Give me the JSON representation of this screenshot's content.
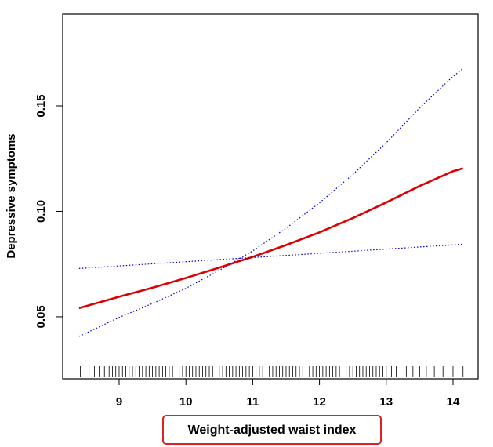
{
  "chart_data": {
    "type": "line",
    "xlabel": "Weight-adjusted waist index",
    "ylabel": "Depressive symptoms",
    "x": [
      8.4,
      9,
      9.5,
      10,
      10.5,
      11,
      11.5,
      12,
      12.5,
      13,
      13.5,
      14,
      14.15
    ],
    "series": [
      {
        "color": "#dd0000",
        "style": "solid",
        "values": [
          0.0541,
          0.0595,
          0.0638,
          0.0684,
          0.0733,
          0.0784,
          0.084,
          0.09,
          0.0968,
          0.1042,
          0.112,
          0.119,
          0.1204
        ]
      },
      {
        "color": "#0000cc",
        "style": "dotted",
        "values": [
          0.0407,
          0.0497,
          0.0563,
          0.0635,
          0.072,
          0.0812,
          0.092,
          0.104,
          0.1175,
          0.1325,
          0.149,
          0.164,
          0.1677
        ]
      },
      {
        "color": "#0000cc",
        "style": "dotted",
        "values": [
          0.0729,
          0.0741,
          0.0751,
          0.0761,
          0.0771,
          0.0781,
          0.0791,
          0.0801,
          0.0811,
          0.0821,
          0.0831,
          0.0841,
          0.0844
        ]
      }
    ],
    "rug": [
      8.42,
      8.55,
      8.63,
      8.7,
      8.78,
      8.85,
      8.9,
      8.95,
      9.0,
      9.05,
      9.1,
      9.15,
      9.2,
      9.25,
      9.3,
      9.35,
      9.4,
      9.45,
      9.5,
      9.55,
      9.6,
      9.65,
      9.7,
      9.75,
      9.8,
      9.85,
      9.9,
      9.95,
      10.0,
      10.05,
      10.1,
      10.15,
      10.2,
      10.25,
      10.3,
      10.35,
      10.4,
      10.45,
      10.5,
      10.55,
      10.6,
      10.65,
      10.7,
      10.75,
      10.8,
      10.85,
      10.9,
      10.95,
      11.0,
      11.05,
      11.1,
      11.15,
      11.2,
      11.25,
      11.3,
      11.35,
      11.4,
      11.45,
      11.5,
      11.55,
      11.6,
      11.65,
      11.7,
      11.75,
      11.8,
      11.85,
      11.9,
      11.95,
      12.0,
      12.05,
      12.1,
      12.15,
      12.2,
      12.25,
      12.3,
      12.35,
      12.4,
      12.45,
      12.5,
      12.55,
      12.6,
      12.65,
      12.7,
      12.75,
      12.8,
      12.85,
      12.9,
      12.95,
      13.0,
      13.08,
      13.15,
      13.22,
      13.3,
      13.4,
      13.5,
      13.6,
      13.72,
      13.85,
      14.0,
      14.15
    ],
    "xlim": [
      8.155,
      14.376
    ],
    "ylim": [
      0.0206,
      0.1935
    ],
    "xticks": [
      9,
      10,
      11,
      12,
      13,
      14
    ],
    "yticks": [
      0.05,
      {
        "value": 0.1,
        "label": "0.10"
      },
      0.15
    ],
    "color": "#000000"
  }
}
